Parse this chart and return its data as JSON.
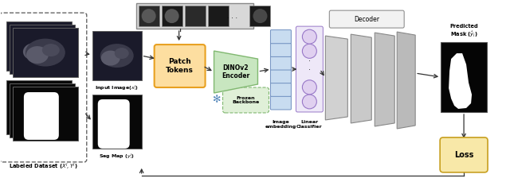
{
  "fig_width": 6.4,
  "fig_height": 2.29,
  "dpi": 100,
  "bg_color": "#ffffff",
  "labeled_dataset_label": "Labeled Dataset ($X^l, Y^l$)",
  "input_image_label": "Input Image($x_i^l$)",
  "seg_map_label": "Seg Map ($y_i^l$)",
  "patch_tokens_label": "Patch\nTokens",
  "dinov2_label": "DINOv2\nEncoder",
  "frozen_label": "Frozen\nBackbone",
  "image_embedding_label": "Image\nembedding",
  "linear_classifier_label": "Linear\nClassifier",
  "decoder_label": "Decoder",
  "predicted_mask_label": "Predicted\nMask ($\\hat{y}_i$)",
  "loss_label": "Loss",
  "patch_tokens_color": "#FDDEA0",
  "patch_tokens_edge": "#E8A020",
  "dinov2_color": "#C8E6C0",
  "dinov2_edge": "#80B870",
  "frozen_color": "#E0F0D8",
  "frozen_edge": "#80B870",
  "image_embed_color": "#C8DCF0",
  "image_embed_edge": "#7090C0",
  "linear_class_color": "#E0D0F0",
  "linear_class_edge": "#9878C8",
  "decoder_box_color": "#F0F0F0",
  "decoder_box_edge": "#909090",
  "loss_color": "#F8E8A8",
  "loss_edge": "#C8A020",
  "arrow_color": "#333333",
  "mri_dark": "#1a1a2a",
  "mri_mid": "#505060",
  "seg_dark": "#080808"
}
